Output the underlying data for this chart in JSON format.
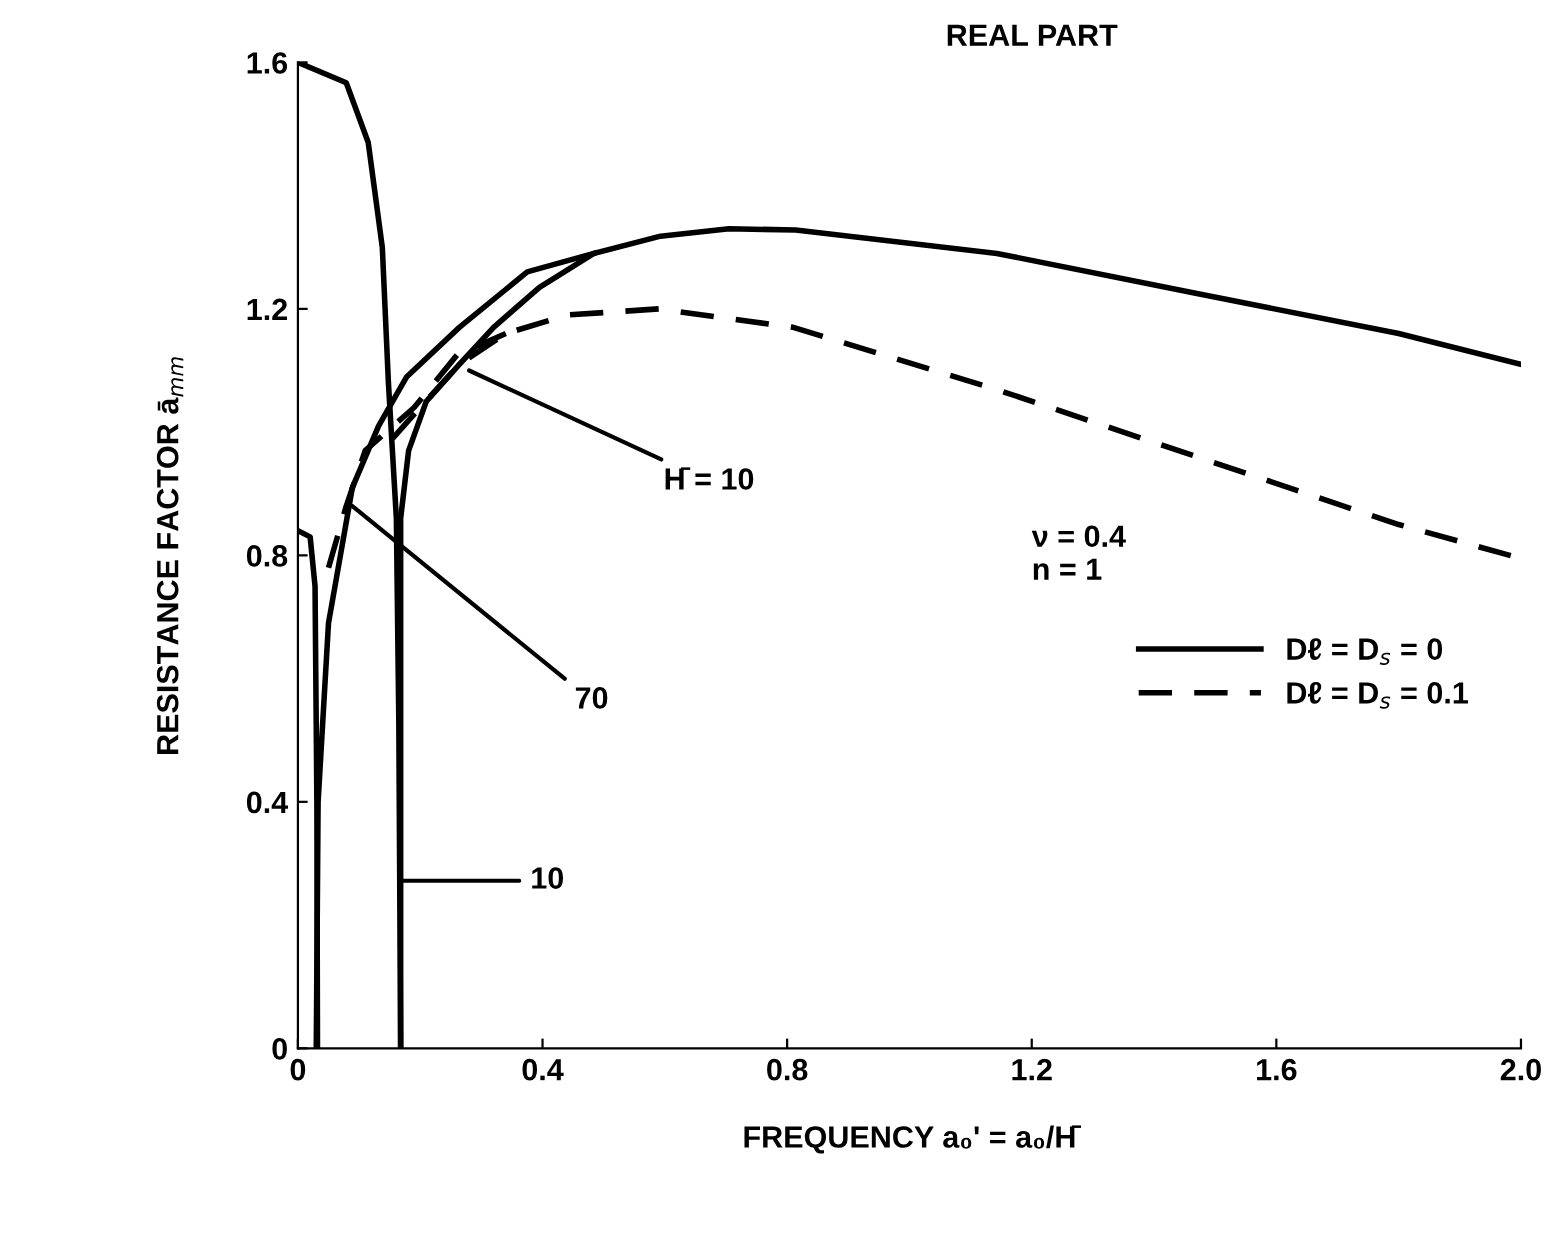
{
  "chart_data": {
    "type": "line",
    "title": "REAL PART",
    "xlabel": "FREQUENCY a₀' = a₀/H̄",
    "ylabel": "RESISTANCE FACTOR ā$_{mm}$",
    "xlim": [
      0,
      2.0
    ],
    "ylim": [
      0,
      1.6
    ],
    "xticks": [
      0,
      0.4,
      0.8,
      1.2,
      1.6,
      {
        "value": 2.0,
        "label": "2.0"
      }
    ],
    "yticks": [
      0,
      0.4,
      0.8,
      1.2,
      1.6
    ],
    "grid": false,
    "legend": "right",
    "marker": "none",
    "series": [
      {
        "name": "Dℓ = D$_{s}$ = 0",
        "color": "#000000",
        "line_style": "solid",
        "x": [
          0.168,
          0.168,
          0.181,
          0.21,
          0.264,
          0.32,
          0.395,
          0.484,
          0.593,
          0.705,
          0.814,
          1.143,
          1.47,
          1.8,
          2.0
        ],
        "values": [
          0,
          0.86,
          0.97,
          1.05,
          1.11,
          1.17,
          1.235,
          1.29,
          1.318,
          1.33,
          1.328,
          1.29,
          1.225,
          1.16,
          1.11
        ]
      },
      {
        "name": "Dℓ = D$_{s}$ = 0.1",
        "color": "#000000",
        "line_style": "dashed",
        "x": [
          0.155,
          0.2,
          0.264,
          0.34,
          0.44,
          0.59,
          0.81,
          1.14,
          1.47,
          1.8,
          2.0
        ],
        "values": [
          0.99,
          1.04,
          1.11,
          1.16,
          1.19,
          1.2,
          1.17,
          1.07,
          0.96,
          0.85,
          0.795
        ]
      },
      {
        "color": "#000000",
        "line_style": "solid",
        "x": [
          0.03,
          0.033,
          0.05,
          0.089,
          0.132,
          0.178,
          0.264,
          0.375,
          0.484
        ],
        "values": [
          0,
          0.4,
          0.69,
          0.91,
          1.01,
          1.09,
          1.17,
          1.26,
          1.29
        ]
      },
      {
        "color": "#000000",
        "line_style": "dashed",
        "x": [
          0.05,
          0.079,
          0.11,
          0.19,
          0.26,
          0.34
        ],
        "values": [
          0.78,
          0.88,
          0.97,
          1.04,
          1.125,
          1.16
        ]
      },
      {
        "color": "#000000",
        "line_style": "solid",
        "x": [
          0,
          0.079,
          0.115,
          0.138,
          0.148,
          0.161,
          0.165,
          0.168
        ],
        "values": [
          1.6,
          1.567,
          1.47,
          1.3,
          1.08,
          0.86,
          0.53,
          0
        ]
      },
      {
        "color": "#000000",
        "line_style": "solid",
        "x": [
          0,
          0.02,
          0.028,
          0.031,
          0.032
        ],
        "values": [
          0.84,
          0.83,
          0.75,
          0.4,
          0
        ]
      }
    ],
    "annotations": [
      {
        "text": "H̄ = 10",
        "x": 0.28,
        "y": 1.1
      },
      {
        "text": "70",
        "x": 0.089,
        "y": 0.88
      },
      "10",
      "ν = 0.4\nn = 1"
    ]
  }
}
